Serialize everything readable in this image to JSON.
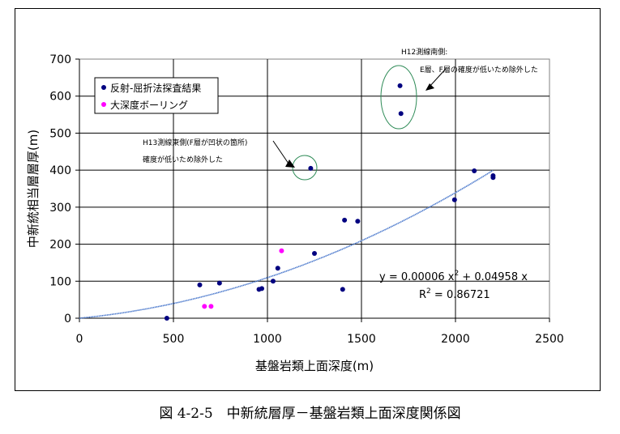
{
  "caption": "図 4-2-5　中新統層厚－基盤岩類上面深度関係図",
  "chart_data": {
    "type": "scatter",
    "title": "",
    "xlabel": "基盤岩類上面深度(m)",
    "ylabel": "中新統相当層層厚(m)",
    "xlim": [
      0,
      2500
    ],
    "ylim": [
      0,
      700
    ],
    "xticks": [
      0,
      500,
      1000,
      1500,
      2000,
      2500
    ],
    "yticks": [
      0,
      100,
      200,
      300,
      400,
      500,
      600,
      700
    ],
    "grid": true,
    "legend_position": "top-left",
    "series": [
      {
        "name": "反射-屈折法探査結果",
        "color": "#000080",
        "points": [
          [
            465,
            0
          ],
          [
            640,
            90
          ],
          [
            745,
            95
          ],
          [
            955,
            78
          ],
          [
            970,
            80
          ],
          [
            1030,
            100
          ],
          [
            1055,
            135
          ],
          [
            1230,
            405
          ],
          [
            1250,
            175
          ],
          [
            1400,
            78
          ],
          [
            1410,
            265
          ],
          [
            1480,
            262
          ],
          [
            1705,
            628
          ],
          [
            1710,
            553
          ],
          [
            1995,
            320
          ],
          [
            2100,
            398
          ],
          [
            2200,
            380
          ],
          [
            2200,
            385
          ]
        ]
      },
      {
        "name": "大深度ボーリング",
        "color": "#ff00ff",
        "points": [
          [
            665,
            32
          ],
          [
            700,
            32
          ],
          [
            1075,
            182
          ]
        ]
      }
    ],
    "trendline": {
      "a": 6e-05,
      "b": 0.04958,
      "x_range": [
        0,
        2200
      ],
      "color": "#4a78cc"
    },
    "equation": {
      "prefix": "y = 0.00006 x",
      "sup": "2",
      "suffix": " + 0.04958 x"
    },
    "r2": {
      "prefix": "R",
      "sup": "2",
      "suffix": " = 0.86721"
    },
    "annotations": {
      "h13_line1": "H13測線東側(F層が凹状の箇所)",
      "h13_line2": "確度が低いため除外した",
      "h12_line1": "H12測線南側:",
      "h12_line2": "E層、F層の確度が低いため除外した"
    }
  }
}
